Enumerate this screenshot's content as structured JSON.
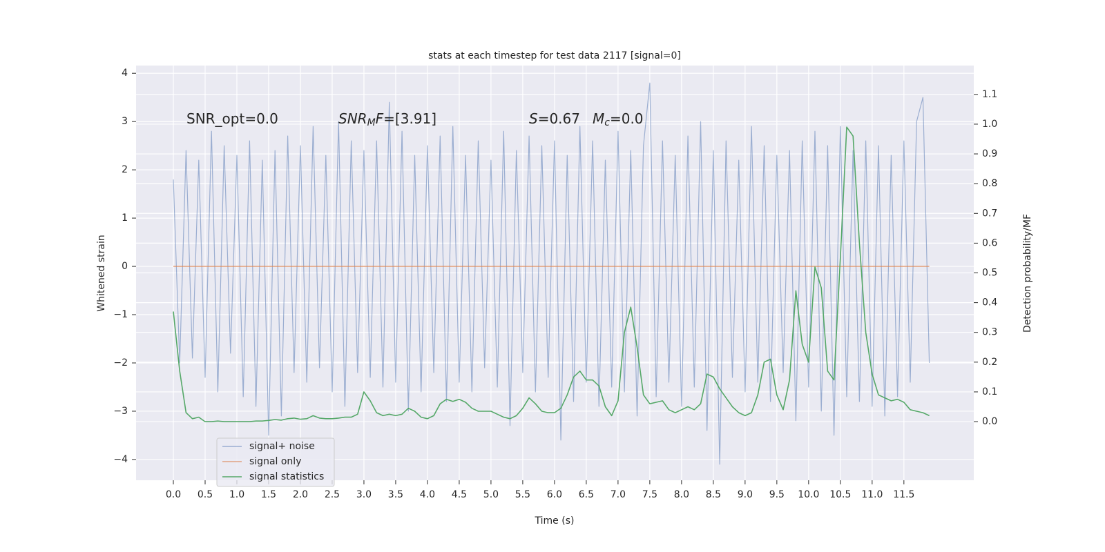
{
  "chart_data": {
    "type": "line",
    "title": "stats at each timestep for test data 2117 [signal=0]",
    "xlabel": "Time (s)",
    "ylabel": "Whitened strain",
    "y2label": "Detection probability/MF",
    "annotations": [
      {
        "parts": [
          {
            "text": "SNR_opt=0.0"
          }
        ]
      },
      {
        "parts": [
          {
            "text": "SNR",
            "italic": true
          },
          {
            "text": "M",
            "italic": true,
            "sub": true
          },
          {
            "text": "F",
            "italic": true
          },
          {
            "text": "=[3.91]"
          }
        ]
      },
      {
        "parts": [
          {
            "text": "S",
            "italic": true
          },
          {
            "text": "=0.67"
          }
        ]
      },
      {
        "parts": [
          {
            "text": "M",
            "italic": true
          },
          {
            "text": "c",
            "italic": true,
            "sub": true
          },
          {
            "text": "=0.0"
          }
        ]
      }
    ],
    "x": [
      0,
      0.1,
      0.2,
      0.3,
      0.4,
      0.5,
      0.6,
      0.7,
      0.8,
      0.9,
      1,
      1.1,
      1.2,
      1.3,
      1.4,
      1.5,
      1.6,
      1.7,
      1.8,
      1.9,
      2,
      2.1,
      2.2,
      2.3,
      2.4,
      2.5,
      2.6,
      2.7,
      2.8,
      2.9,
      3,
      3.1,
      3.2,
      3.3,
      3.4,
      3.5,
      3.6,
      3.7,
      3.8,
      3.9,
      4,
      4.1,
      4.2,
      4.3,
      4.4,
      4.5,
      4.6,
      4.7,
      4.8,
      4.9,
      5,
      5.1,
      5.2,
      5.3,
      5.4,
      5.5,
      5.6,
      5.7,
      5.8,
      5.9,
      6,
      6.1,
      6.2,
      6.3,
      6.4,
      6.5,
      6.6,
      6.7,
      6.8,
      6.9,
      7,
      7.1,
      7.2,
      7.3,
      7.4,
      7.5,
      7.6,
      7.7,
      7.8,
      7.9,
      8,
      8.1,
      8.2,
      8.3,
      8.4,
      8.5,
      8.6,
      8.7,
      8.8,
      8.9,
      9,
      9.1,
      9.2,
      9.3,
      9.4,
      9.5,
      9.6,
      9.7,
      9.8,
      9.9,
      10,
      10.1,
      10.2,
      10.3,
      10.4,
      10.5,
      10.6,
      10.7,
      10.8,
      10.9,
      11,
      11.1,
      11.2,
      11.3,
      11.4,
      11.5,
      11.6,
      11.7,
      11.8,
      11.9
    ],
    "series": [
      {
        "name": "signal+ noise",
        "color": "#4c72b0",
        "opacity": 0.5,
        "axis": "y",
        "values": [
          1.8,
          -2.0,
          2.4,
          -1.9,
          2.2,
          -2.3,
          2.8,
          -2.6,
          2.5,
          -1.8,
          2.3,
          -2.7,
          2.6,
          -2.9,
          2.2,
          -3.5,
          2.4,
          -3.1,
          2.7,
          -2.2,
          2.5,
          -2.4,
          2.9,
          -2.1,
          2.3,
          -2.6,
          3.0,
          -2.9,
          2.6,
          -2.2,
          2.4,
          -2.3,
          2.6,
          -2.5,
          3.4,
          -2.4,
          2.8,
          -3.0,
          2.3,
          -2.6,
          2.5,
          -2.2,
          2.7,
          -2.8,
          2.9,
          -2.4,
          2.3,
          -2.6,
          2.6,
          -2.1,
          2.2,
          -2.5,
          2.8,
          -3.3,
          2.4,
          -2.2,
          2.7,
          -2.6,
          2.5,
          -2.3,
          2.6,
          -3.6,
          2.3,
          -2.8,
          2.9,
          -2.4,
          2.6,
          -2.9,
          2.2,
          -2.5,
          2.8,
          -2.6,
          2.4,
          -3.1,
          2.5,
          3.8,
          -2.7,
          2.6,
          -2.4,
          2.3,
          -2.9,
          2.7,
          -2.5,
          3.0,
          -3.4,
          2.4,
          -4.1,
          2.6,
          -2.3,
          2.2,
          -2.6,
          2.9,
          -2.4,
          2.5,
          -2.8,
          2.3,
          -2.2,
          2.4,
          -3.2,
          2.6,
          -2.5,
          2.8,
          -3.0,
          2.5,
          -3.5,
          2.9,
          -2.7,
          2.4,
          -2.8,
          2.6,
          -2.9,
          2.5,
          -3.1,
          2.3,
          -2.7,
          2.6,
          -2.4,
          3.0,
          3.5,
          -2.0
        ]
      },
      {
        "name": "signal only",
        "color": "#dd8452",
        "opacity": 0.7,
        "axis": "y",
        "values": [
          0,
          0,
          0,
          0,
          0,
          0,
          0,
          0,
          0,
          0,
          0,
          0,
          0,
          0,
          0,
          0,
          0,
          0,
          0,
          0,
          0,
          0,
          0,
          0,
          0,
          0,
          0,
          0,
          0,
          0,
          0,
          0,
          0,
          0,
          0,
          0,
          0,
          0,
          0,
          0,
          0,
          0,
          0,
          0,
          0,
          0,
          0,
          0,
          0,
          0,
          0,
          0,
          0,
          0,
          0,
          0,
          0,
          0,
          0,
          0,
          0,
          0,
          0,
          0,
          0,
          0,
          0,
          0,
          0,
          0,
          0,
          0,
          0,
          0,
          0,
          0,
          0,
          0,
          0,
          0,
          0,
          0,
          0,
          0,
          0,
          0,
          0,
          0,
          0,
          0,
          0,
          0,
          0,
          0,
          0,
          0,
          0,
          0,
          0,
          0,
          0,
          0,
          0,
          0,
          0,
          0,
          0,
          0,
          0,
          0,
          0,
          0,
          0,
          0,
          0,
          0,
          0,
          0,
          0,
          0
        ]
      },
      {
        "name": "signal statistics",
        "color": "#55a868",
        "opacity": 1,
        "axis": "y2",
        "values": [
          0.37,
          0.17,
          0.03,
          0.01,
          0.015,
          0,
          0,
          0.002,
          0,
          0,
          0,
          0,
          0,
          0.002,
          0.002,
          0.004,
          0.007,
          0.005,
          0.01,
          0.012,
          0.008,
          0.01,
          0.02,
          0.012,
          0.01,
          0.01,
          0.012,
          0.015,
          0.015,
          0.025,
          0.1,
          0.07,
          0.03,
          0.02,
          0.025,
          0.02,
          0.025,
          0.045,
          0.035,
          0.015,
          0.01,
          0.02,
          0.06,
          0.075,
          0.068,
          0.075,
          0.065,
          0.045,
          0.035,
          0.035,
          0.035,
          0.025,
          0.015,
          0.01,
          0.02,
          0.045,
          0.08,
          0.06,
          0.035,
          0.03,
          0.03,
          0.045,
          0.09,
          0.15,
          0.17,
          0.14,
          0.14,
          0.12,
          0.05,
          0.02,
          0.07,
          0.3,
          0.385,
          0.25,
          0.09,
          0.06,
          0.065,
          0.07,
          0.04,
          0.03,
          0.04,
          0.05,
          0.04,
          0.06,
          0.16,
          0.15,
          0.11,
          0.08,
          0.05,
          0.03,
          0.02,
          0.03,
          0.09,
          0.2,
          0.21,
          0.09,
          0.04,
          0.14,
          0.44,
          0.26,
          0.2,
          0.52,
          0.45,
          0.17,
          0.14,
          0.55,
          0.99,
          0.96,
          0.6,
          0.3,
          0.16,
          0.09,
          0.08,
          0.07,
          0.075,
          0.065,
          0.04,
          0.035,
          0.03,
          0.02
        ]
      }
    ],
    "xlim": [
      -0.587,
      12.6
    ],
    "ylim": [
      -4.43,
      4.16
    ],
    "y2lim": [
      -0.197,
      1.197
    ],
    "xticks": [
      {
        "value": 0,
        "label": "0.0"
      },
      0.5,
      {
        "value": 1,
        "label": "1.0"
      },
      1.5,
      {
        "value": 2,
        "label": "2.0"
      },
      2.5,
      {
        "value": 3,
        "label": "3.0"
      },
      3.5,
      {
        "value": 4,
        "label": "4.0"
      },
      4.5,
      {
        "value": 5,
        "label": "5.0"
      },
      5.5,
      {
        "value": 6,
        "label": "6.0"
      },
      6.5,
      {
        "value": 7,
        "label": "7.0"
      },
      7.5,
      {
        "value": 8,
        "label": "8.0"
      },
      8.5,
      {
        "value": 9,
        "label": "9.0"
      },
      9.5,
      {
        "value": 10,
        "label": "10.0"
      },
      10.5,
      {
        "value": 11,
        "label": "11.0"
      },
      11.5
    ],
    "yticks": [
      {
        "value": -4,
        "label": "−4"
      },
      {
        "value": -3,
        "label": "−3"
      },
      {
        "value": -2,
        "label": "−2"
      },
      {
        "value": -1,
        "label": "−1"
      },
      0,
      1,
      2,
      3,
      4
    ],
    "y2ticks": [
      {
        "value": 0,
        "label": "0.0"
      },
      0.1,
      0.2,
      0.3,
      0.4,
      0.5,
      0.6,
      0.7,
      0.8,
      0.9,
      {
        "value": 1,
        "label": "1.0"
      },
      1.1
    ],
    "grid": true,
    "legend": "lower left"
  }
}
